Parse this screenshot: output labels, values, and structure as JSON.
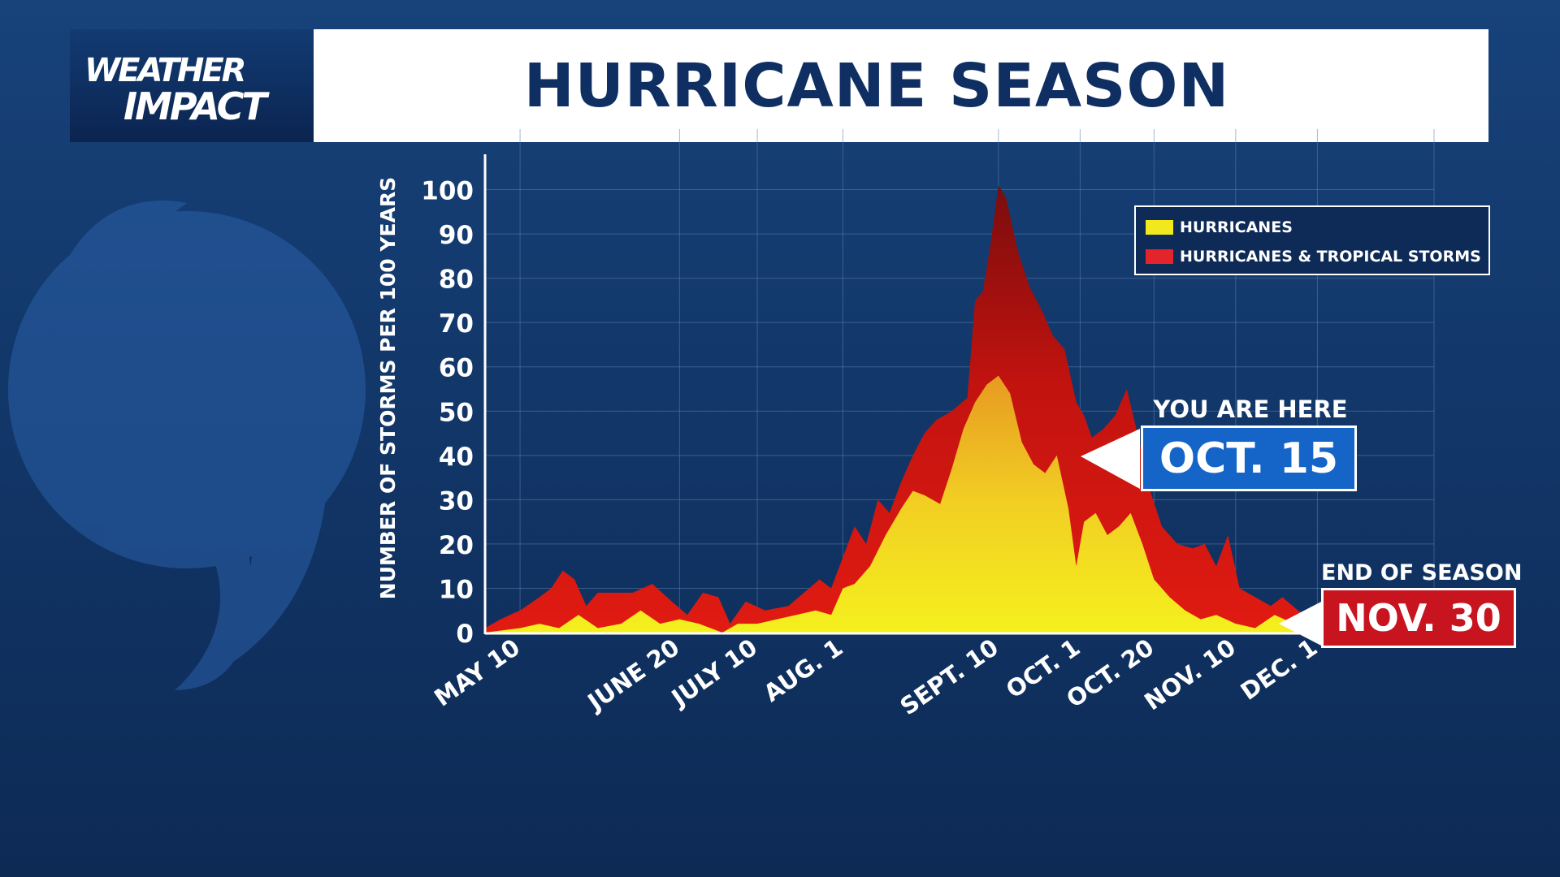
{
  "brand": {
    "line1": "WEATHER",
    "line2": "IMPACT"
  },
  "title": "HURRICANE SEASON",
  "colors": {
    "background": "#133a6e",
    "title_text": "#0f2f63",
    "hurricanes": "#f2e81e",
    "hurricanes_tropical_storms": "#d6141a",
    "current_box": "#1565c8",
    "end_box": "#c8141f"
  },
  "icons": {
    "background_glyph": "hurricane-symbol-icon"
  },
  "legend": {
    "items": [
      {
        "label": "HURRICANES",
        "color": "#f2e81e"
      },
      {
        "label": "HURRICANES & TROPICAL STORMS",
        "color": "#e3242b"
      }
    ]
  },
  "current_marker": {
    "caption": "YOU ARE HERE",
    "date": "OCT. 15"
  },
  "end_marker": {
    "caption": "END OF SEASON",
    "date": "NOV. 30"
  },
  "chart_data": {
    "type": "area",
    "title": "HURRICANE SEASON",
    "ylabel": "NUMBER OF STORMS PER 100 YEARS",
    "xlabel": "",
    "ylim": [
      0,
      110
    ],
    "yticks": [
      0,
      10,
      20,
      30,
      40,
      50,
      60,
      70,
      80,
      90,
      100
    ],
    "x_start": "MAY 1",
    "x_end": "DEC. 31",
    "xticks": [
      {
        "label": "MAY 10",
        "x": "MAY 10"
      },
      {
        "label": "JUNE 20",
        "x": "JUNE 20"
      },
      {
        "label": "JULY 10",
        "x": "JULY 10"
      },
      {
        "label": "AUG. 1",
        "x": "AUG. 1"
      },
      {
        "label": "SEPT. 10",
        "x": "SEPT. 10"
      },
      {
        "label": "OCT. 1",
        "x": "OCT. 1"
      },
      {
        "label": "OCT. 20",
        "x": "OCT. 20"
      },
      {
        "label": "NOV. 10",
        "x": "NOV. 10"
      },
      {
        "label": "DEC. 1",
        "x": "DEC. 1"
      }
    ],
    "grid": true,
    "legend_position": "top-right",
    "series": [
      {
        "name": "HURRICANES & TROPICAL STORMS",
        "color": "#d6141a",
        "points": [
          [
            "MAY 1",
            1
          ],
          [
            "MAY 5",
            3
          ],
          [
            "MAY 10",
            5
          ],
          [
            "MAY 15",
            8
          ],
          [
            "MAY 18",
            10
          ],
          [
            "MAY 21",
            14
          ],
          [
            "MAY 24",
            12
          ],
          [
            "MAY 27",
            6
          ],
          [
            "MAY 30",
            9
          ],
          [
            "JUNE 3",
            9
          ],
          [
            "JUNE 8",
            9
          ],
          [
            "JUNE 13",
            11
          ],
          [
            "JUNE 18",
            7
          ],
          [
            "JUNE 22",
            4
          ],
          [
            "JUNE 26",
            9
          ],
          [
            "JUNE 30",
            8
          ],
          [
            "JULY 3",
            2
          ],
          [
            "JULY 7",
            7
          ],
          [
            "JULY 12",
            5
          ],
          [
            "JULY 18",
            6
          ],
          [
            "JULY 22",
            9
          ],
          [
            "JULY 26",
            12
          ],
          [
            "JULY 29",
            10
          ],
          [
            "AUG. 1",
            17
          ],
          [
            "AUG. 4",
            24
          ],
          [
            "AUG. 7",
            20
          ],
          [
            "AUG. 10",
            30
          ],
          [
            "AUG. 13",
            27
          ],
          [
            "AUG. 16",
            34
          ],
          [
            "AUG. 19",
            40
          ],
          [
            "AUG. 22",
            45
          ],
          [
            "AUG. 25",
            48
          ],
          [
            "AUG. 29",
            50
          ],
          [
            "SEPT. 2",
            53
          ],
          [
            "SEPT. 4",
            75
          ],
          [
            "SEPT. 6",
            77
          ],
          [
            "SEPT. 8",
            88
          ],
          [
            "SEPT. 10",
            101
          ],
          [
            "SEPT. 12",
            98
          ],
          [
            "SEPT. 15",
            86
          ],
          [
            "SEPT. 18",
            78
          ],
          [
            "SEPT. 21",
            73
          ],
          [
            "SEPT. 24",
            67
          ],
          [
            "SEPT. 27",
            64
          ],
          [
            "SEPT. 30",
            52
          ],
          [
            "OCT. 2",
            49
          ],
          [
            "OCT. 4",
            44
          ],
          [
            "OCT. 7",
            46
          ],
          [
            "OCT. 10",
            49
          ],
          [
            "OCT. 13",
            55
          ],
          [
            "OCT. 16",
            44
          ],
          [
            "OCT. 19",
            32
          ],
          [
            "OCT. 22",
            24
          ],
          [
            "OCT. 26",
            20
          ],
          [
            "OCT. 30",
            19
          ],
          [
            "NOV. 2",
            20
          ],
          [
            "NOV. 5",
            15
          ],
          [
            "NOV. 8",
            22
          ],
          [
            "NOV. 11",
            10
          ],
          [
            "NOV. 15",
            8
          ],
          [
            "NOV. 19",
            6
          ],
          [
            "NOV. 22",
            8
          ],
          [
            "NOV. 26",
            5
          ],
          [
            "NOV. 30",
            3
          ],
          [
            "DEC. 3",
            3
          ],
          [
            "DEC. 6",
            1
          ],
          [
            "DEC. 8",
            0
          ]
        ]
      },
      {
        "name": "HURRICANES",
        "color": "#f2e81e",
        "points": [
          [
            "MAY 1",
            0
          ],
          [
            "MAY 10",
            1
          ],
          [
            "MAY 15",
            2
          ],
          [
            "MAY 20",
            1
          ],
          [
            "MAY 25",
            4
          ],
          [
            "MAY 30",
            1
          ],
          [
            "JUNE 5",
            2
          ],
          [
            "JUNE 10",
            5
          ],
          [
            "JUNE 15",
            2
          ],
          [
            "JUNE 20",
            3
          ],
          [
            "JUNE 25",
            2
          ],
          [
            "JULY 1",
            0
          ],
          [
            "JULY 5",
            2
          ],
          [
            "JULY 10",
            2
          ],
          [
            "JULY 15",
            3
          ],
          [
            "JULY 20",
            4
          ],
          [
            "JULY 25",
            5
          ],
          [
            "JULY 29",
            4
          ],
          [
            "AUG. 1",
            10
          ],
          [
            "AUG. 4",
            11
          ],
          [
            "AUG. 8",
            15
          ],
          [
            "AUG. 12",
            22
          ],
          [
            "AUG. 16",
            28
          ],
          [
            "AUG. 19",
            32
          ],
          [
            "AUG. 22",
            31
          ],
          [
            "AUG. 26",
            29
          ],
          [
            "AUG. 29",
            37
          ],
          [
            "SEPT. 1",
            46
          ],
          [
            "SEPT. 4",
            52
          ],
          [
            "SEPT. 7",
            56
          ],
          [
            "SEPT. 10",
            58
          ],
          [
            "SEPT. 13",
            54
          ],
          [
            "SEPT. 16",
            43
          ],
          [
            "SEPT. 19",
            38
          ],
          [
            "SEPT. 22",
            36
          ],
          [
            "SEPT. 25",
            40
          ],
          [
            "SEPT. 28",
            28
          ],
          [
            "SEPT. 30",
            15
          ],
          [
            "OCT. 2",
            25
          ],
          [
            "OCT. 5",
            27
          ],
          [
            "OCT. 8",
            22
          ],
          [
            "OCT. 11",
            24
          ],
          [
            "OCT. 14",
            27
          ],
          [
            "OCT. 17",
            20
          ],
          [
            "OCT. 20",
            12
          ],
          [
            "OCT. 24",
            8
          ],
          [
            "OCT. 28",
            5
          ],
          [
            "NOV. 1",
            3
          ],
          [
            "NOV. 5",
            4
          ],
          [
            "NOV. 10",
            2
          ],
          [
            "NOV. 15",
            1
          ],
          [
            "NOV. 20",
            4
          ],
          [
            "NOV. 25",
            2
          ],
          [
            "NOV. 30",
            1
          ],
          [
            "DEC. 3",
            1
          ],
          [
            "DEC. 6",
            0
          ]
        ]
      }
    ]
  }
}
